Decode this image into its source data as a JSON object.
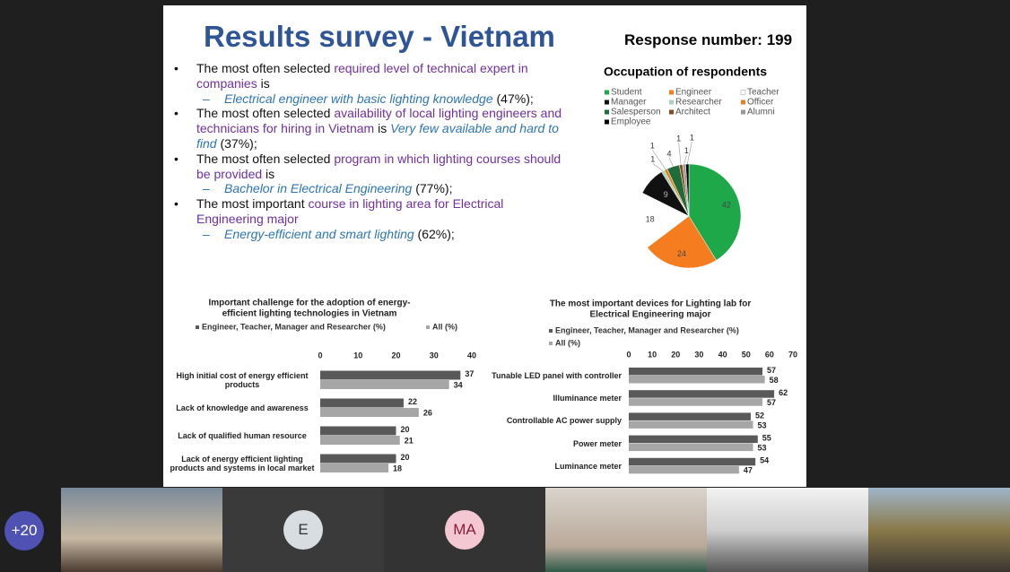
{
  "slide": {
    "title": "Results survey - Vietnam",
    "response": "Response number: 199",
    "bullets": [
      {
        "segments": [
          {
            "text": "The most often selected ",
            "style": "plain"
          },
          {
            "text": "required level of technical expert in companies",
            "style": "purple"
          },
          {
            "text": " is",
            "style": "plain"
          }
        ],
        "sub": [
          {
            "text": "Electrical engineer with basic lighting knowledge",
            "style": "blue-italic"
          },
          {
            "text": " (47%);",
            "style": "plain"
          }
        ]
      },
      {
        "segments": [
          {
            "text": "The most often selected ",
            "style": "plain"
          },
          {
            "text": "availability of local lighting engineers and technicians for hiring in Vietnam",
            "style": "purple"
          },
          {
            "text": " is ",
            "style": "plain"
          },
          {
            "text": "Very few available and hard to find",
            "style": "blue-italic"
          },
          {
            "text": " (37%);",
            "style": "plain"
          }
        ]
      },
      {
        "segments": [
          {
            "text": "The most often selected ",
            "style": "plain"
          },
          {
            "text": "program in which lighting courses should be provided",
            "style": "purple"
          },
          {
            "text": " is",
            "style": "plain"
          }
        ],
        "sub": [
          {
            "text": "Bachelor in Electrical Engineering",
            "style": "blue-italic"
          },
          {
            "text": " (77%);",
            "style": "plain"
          }
        ]
      },
      {
        "segments": [
          {
            "text": "The most important ",
            "style": "plain"
          },
          {
            "text": "course in lighting area for Electrical Engineering major",
            "style": "purple"
          }
        ],
        "sub": [
          {
            "text": "Energy-efficient and smart lighting",
            "style": "blue-italic"
          },
          {
            "text": " (62%);",
            "style": "plain"
          }
        ]
      }
    ]
  },
  "chart_data": [
    {
      "type": "pie",
      "title": "Occupation of respondents",
      "categories": [
        "Student",
        "Engineer",
        "Teacher",
        "Manager",
        "Researcher",
        "Officer",
        "Salesperson",
        "Architect",
        "Alumni",
        "Employee"
      ],
      "colors": [
        "#1fa84a",
        "#f57c1f",
        "#ffffff",
        "#111111",
        "#a9d3b8",
        "#e8801f",
        "#1f6b3a",
        "#8a4a1a",
        "#9a9a9a",
        "#000000"
      ],
      "values": [
        42,
        24,
        18,
        9,
        1,
        1,
        4,
        1,
        1,
        1
      ]
    },
    {
      "type": "hbar",
      "title": [
        "Important challenge for the adoption of energy-",
        "efficient lighting technologies in Vietnam"
      ],
      "categories": [
        "High initial cost of energy efficient products",
        "Lack of knowledge and awareness",
        "Lack of qualified human resource",
        "Lack of energy efficient lighting products and systems in local market"
      ],
      "series": [
        {
          "name": "Engineer, Teacher,  Manager and Researcher (%)",
          "color": "#595959",
          "values": [
            37,
            22,
            20,
            20
          ]
        },
        {
          "name": "All (%)",
          "color": "#a6a6a6",
          "values": [
            34,
            26,
            21,
            18
          ]
        }
      ],
      "xlim": [
        0,
        40
      ],
      "xticks": [
        0,
        10,
        20,
        30,
        40
      ]
    },
    {
      "type": "hbar",
      "title": [
        "The most important devices for Lighting lab for",
        "Electrical Engineering major"
      ],
      "categories": [
        "Tunable LED panel with controller",
        "Illuminance meter",
        "Controllable AC power supply",
        "Power meter",
        "Luminance meter"
      ],
      "series": [
        {
          "name": "Engineer, Teacher,  Manager and Researcher (%)",
          "color": "#595959",
          "values": [
            57,
            62,
            52,
            55,
            54
          ]
        },
        {
          "name": "All (%)",
          "color": "#a6a6a6",
          "values": [
            58,
            57,
            53,
            53,
            47
          ]
        }
      ],
      "xlim": [
        0,
        70
      ],
      "xticks": [
        0,
        10,
        20,
        30,
        40,
        50,
        60,
        70
      ]
    }
  ],
  "call": {
    "overflow": "+20",
    "participants": [
      "E",
      "MA"
    ]
  }
}
